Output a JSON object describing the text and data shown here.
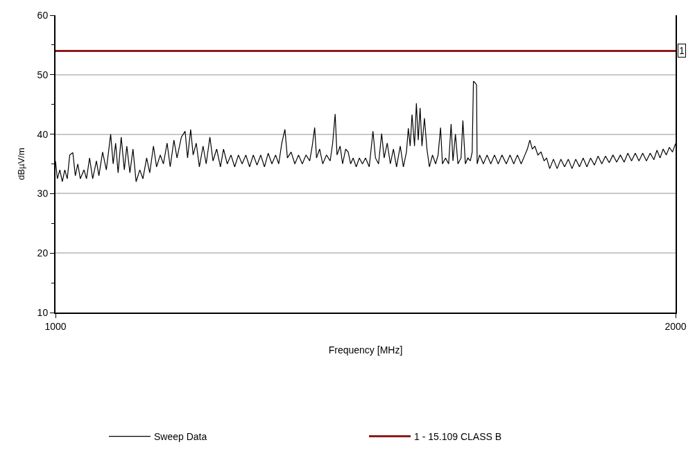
{
  "chart_data": {
    "type": "line",
    "xlabel": "Frequency [MHz]",
    "ylabel": "dBµV/m",
    "xlim": [
      1000,
      2000
    ],
    "xticks": [
      1000,
      2000
    ],
    "ylim": [
      10,
      60
    ],
    "yticks": [
      10,
      {
        "value": 15,
        "label": null
      },
      20,
      {
        "value": 25,
        "label": null
      },
      30,
      {
        "value": 35,
        "label": null
      },
      40,
      {
        "value": 45,
        "label": null
      },
      50,
      {
        "value": 55,
        "label": null
      },
      60
    ],
    "grid": "y",
    "legend": "bottom",
    "marker": "none",
    "line_style": "solid",
    "annotations": [
      {
        "text": "1",
        "x": 2000,
        "y": 54
      }
    ],
    "series": [
      {
        "name": "Sweep Data",
        "color": "#000000",
        "x": [
          1000,
          1003,
          1007,
          1011,
          1015,
          1019,
          1023,
          1028,
          1032,
          1036,
          1040,
          1046,
          1050,
          1055,
          1060,
          1066,
          1070,
          1076,
          1082,
          1089,
          1093,
          1097,
          1101,
          1106,
          1111,
          1115,
          1120,
          1125,
          1130,
          1136,
          1141,
          1147,
          1152,
          1158,
          1163,
          1169,
          1174,
          1180,
          1185,
          1191,
          1196,
          1203,
          1209,
          1213,
          1218,
          1222,
          1227,
          1232,
          1238,
          1243,
          1249,
          1254,
          1260,
          1266,
          1271,
          1277,
          1283,
          1289,
          1295,
          1301,
          1307,
          1313,
          1319,
          1325,
          1331,
          1337,
          1343,
          1349,
          1355,
          1360,
          1365,
          1370,
          1374,
          1380,
          1386,
          1392,
          1398,
          1404,
          1410,
          1414,
          1418,
          1421,
          1426,
          1431,
          1437,
          1443,
          1447,
          1451,
          1454,
          1459,
          1463,
          1468,
          1472,
          1476,
          1480,
          1485,
          1490,
          1495,
          1500,
          1506,
          1512,
          1516,
          1521,
          1526,
          1530,
          1535,
          1540,
          1545,
          1550,
          1556,
          1561,
          1566,
          1569,
          1572,
          1575,
          1579,
          1582,
          1585,
          1588,
          1591,
          1595,
          1599,
          1603,
          1608,
          1613,
          1617,
          1621,
          1624,
          1629,
          1634,
          1638,
          1641,
          1645,
          1649,
          1654,
          1657,
          1661,
          1665,
          1669,
          1672,
          1674,
          1677,
          1679,
          1680,
          1684,
          1690,
          1696,
          1702,
          1708,
          1714,
          1720,
          1727,
          1733,
          1739,
          1745,
          1751,
          1757,
          1761,
          1765,
          1769,
          1773,
          1778,
          1783,
          1788,
          1792,
          1797,
          1803,
          1809,
          1815,
          1821,
          1827,
          1833,
          1839,
          1845,
          1851,
          1857,
          1863,
          1869,
          1875,
          1881,
          1887,
          1893,
          1899,
          1905,
          1911,
          1917,
          1923,
          1929,
          1935,
          1941,
          1947,
          1953,
          1959,
          1965,
          1970,
          1975,
          1980,
          1985,
          1990,
          1995,
          2000
        ],
        "values": [
          35.5,
          32.5,
          34,
          32,
          34,
          32.5,
          36.5,
          36.9,
          33,
          35,
          32.5,
          34,
          32.5,
          36,
          32.5,
          35.5,
          33,
          37,
          34,
          40,
          35,
          38.5,
          33.5,
          39.5,
          34,
          38,
          33.5,
          37.5,
          32,
          34,
          32.5,
          36,
          33.5,
          38,
          34.5,
          36.5,
          35,
          38.5,
          34.5,
          39,
          36,
          39.5,
          40.5,
          36,
          40.8,
          36.5,
          38.5,
          34.5,
          38,
          35,
          39.5,
          35.5,
          37.5,
          34.5,
          37.5,
          35,
          36.5,
          34.5,
          36.5,
          35,
          36.5,
          34.5,
          36.5,
          34.8,
          36.5,
          34.5,
          36.8,
          35,
          36.5,
          35,
          38.5,
          40.8,
          36,
          37,
          35,
          36.5,
          35,
          36.5,
          35.5,
          38,
          41.1,
          36,
          37.5,
          35,
          36.5,
          35.5,
          38.5,
          43.4,
          36.5,
          38,
          35,
          37.5,
          37,
          35,
          36,
          34.5,
          36,
          35,
          36,
          34.5,
          40.5,
          36,
          35,
          40.1,
          36,
          38.5,
          35,
          37.5,
          34.5,
          38,
          34.5,
          37,
          41,
          38,
          43.3,
          38,
          45.2,
          39,
          44.4,
          38,
          42.7,
          37.5,
          34.5,
          36.5,
          35,
          36.5,
          41.1,
          35,
          36,
          35,
          41.7,
          35.5,
          40,
          35,
          36,
          42.3,
          35,
          36,
          35.5,
          37,
          48.9,
          48.6,
          48.3,
          35,
          36.5,
          35,
          36.5,
          35,
          36.5,
          35,
          36.5,
          35,
          36.5,
          35,
          36.5,
          35,
          36.5,
          37.5,
          39,
          37.5,
          38,
          36.5,
          37,
          35.5,
          36,
          34.2,
          35.8,
          34.2,
          35.8,
          34.5,
          35.8,
          34.2,
          35.8,
          34.5,
          36,
          34.5,
          36,
          34.8,
          36.3,
          35,
          36.3,
          35.2,
          36.5,
          35.3,
          36.5,
          35.3,
          36.8,
          35.5,
          36.8,
          35.5,
          36.8,
          35.5,
          36.8,
          35.7,
          37.3,
          36,
          37.5,
          36.5,
          37.8,
          37,
          38.4
        ]
      },
      {
        "name": "1 - 15.109 CLASS B",
        "color": "#8b1a1a",
        "x": [
          1000,
          2000
        ],
        "values": [
          54,
          54
        ]
      }
    ]
  }
}
